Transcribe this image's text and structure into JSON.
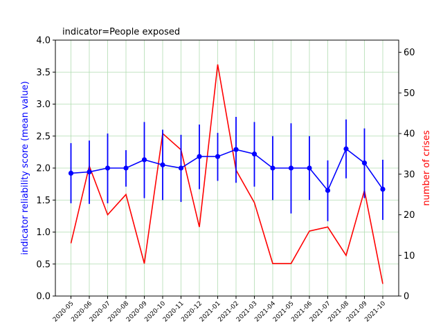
{
  "chart_data": {
    "type": "line",
    "title": "indicator=People exposed",
    "xlabel": "",
    "categories": [
      "2020-05",
      "2020-06",
      "2020-07",
      "2020-08",
      "2020-09",
      "2020-10",
      "2020-11",
      "2020-12",
      "2021-01",
      "2021-02",
      "2021-03",
      "2021-04",
      "2021-05",
      "2021-06",
      "2021-07",
      "2021-08",
      "2021-09",
      "2021-10"
    ],
    "y_left": {
      "label": "indicator reliability score (mean value)",
      "ylim": [
        0,
        4.0
      ],
      "ticks": [
        "0.0",
        "0.5",
        "1.0",
        "1.5",
        "2.0",
        "2.5",
        "3.0",
        "3.5",
        "4.0"
      ],
      "color": "#0000ff"
    },
    "y_right": {
      "label": "number of crises",
      "ylim": [
        0,
        63
      ],
      "ticks": [
        "0",
        "10",
        "20",
        "30",
        "40",
        "50",
        "60"
      ],
      "color": "#ff0000"
    },
    "grid": true,
    "series": [
      {
        "axis": "left",
        "color": "#0000ff",
        "marker": "circle",
        "values": [
          1.92,
          1.94,
          2.0,
          2.0,
          2.13,
          2.05,
          2.0,
          2.18,
          2.18,
          2.29,
          2.22,
          2.0,
          2.0,
          2.0,
          1.65,
          2.3,
          2.08,
          1.67
        ],
        "error_low": [
          1.45,
          1.44,
          1.45,
          1.71,
          1.53,
          1.5,
          1.47,
          1.67,
          1.8,
          1.77,
          1.71,
          1.5,
          1.29,
          1.5,
          1.17,
          1.84,
          1.53,
          1.19
        ],
        "error_high": [
          2.39,
          2.43,
          2.54,
          2.28,
          2.72,
          2.6,
          2.52,
          2.68,
          2.55,
          2.8,
          2.72,
          2.5,
          2.7,
          2.5,
          2.12,
          2.76,
          2.62,
          2.13
        ]
      },
      {
        "axis": "right",
        "color": "#ff0000",
        "values": [
          13,
          32,
          20,
          25,
          8,
          40,
          36,
          17,
          57,
          31,
          23,
          8,
          8,
          16,
          17,
          10,
          26,
          3
        ]
      }
    ]
  }
}
